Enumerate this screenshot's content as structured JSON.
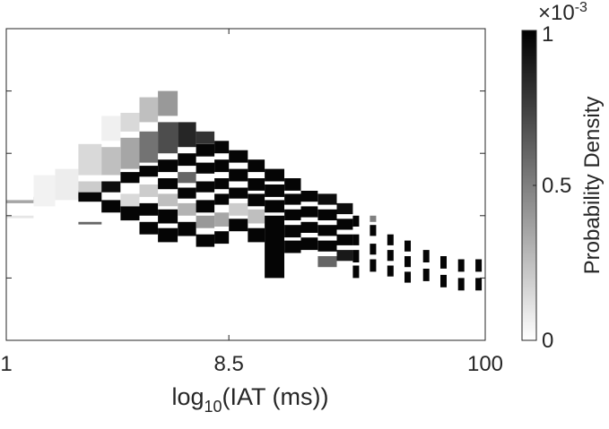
{
  "chart_data": {
    "type": "heatmap",
    "title": "",
    "x_axis": {
      "label_base": "log",
      "label_subscript": "10",
      "label_rest": "(IAT (ms))",
      "scale": "log",
      "range": [
        1,
        100
      ],
      "tick_labels": [
        "1",
        "8.5",
        "100"
      ],
      "tick_values": [
        1,
        8.5,
        100
      ]
    },
    "y_axis": {
      "label": "",
      "tick_labels": []
    },
    "colorbar": {
      "label": "Probability Density",
      "range": [
        0,
        0.001
      ],
      "tick_labels": [
        "0",
        "0.5",
        "1"
      ],
      "tick_values": [
        0,
        0.5,
        1
      ],
      "multiplier_base": "×10",
      "multiplier_exp": "-3",
      "colormap": "gray-reversed"
    },
    "grid": false,
    "columns": [
      {
        "x": 1.0,
        "bands": [
          {
            "y": 0.55,
            "h": 0.01,
            "v": 0.35
          },
          {
            "y": 0.6,
            "h": 0.008,
            "v": 0.1
          }
        ]
      },
      {
        "x": 1.3,
        "bands": [
          {
            "y": 0.54,
            "h": 0.012,
            "v": 0.55
          },
          {
            "y": 0.47,
            "h": 0.1,
            "v": 0.05
          }
        ]
      },
      {
        "x": 1.6,
        "bands": [
          {
            "y": 0.53,
            "h": 0.014,
            "v": 0.75
          },
          {
            "y": 0.45,
            "h": 0.1,
            "v": 0.07
          }
        ]
      },
      {
        "x": 2.0,
        "bands": [
          {
            "y": 0.52,
            "h": 0.035,
            "v": 0.98
          },
          {
            "y": 0.49,
            "h": 0.035,
            "v": 0.2
          },
          {
            "y": 0.37,
            "h": 0.1,
            "v": 0.15
          },
          {
            "y": 0.62,
            "h": 0.008,
            "v": 0.6
          }
        ]
      },
      {
        "x": 2.5,
        "bands": [
          {
            "y": 0.49,
            "h": 0.035,
            "v": 0.95
          },
          {
            "y": 0.55,
            "h": 0.04,
            "v": 0.98
          },
          {
            "y": 0.38,
            "h": 0.09,
            "v": 0.25
          },
          {
            "y": 0.28,
            "h": 0.08,
            "v": 0.06
          }
        ]
      },
      {
        "x": 3.0,
        "bands": [
          {
            "y": 0.46,
            "h": 0.035,
            "v": 0.98
          },
          {
            "y": 0.53,
            "h": 0.04,
            "v": 0.15
          },
          {
            "y": 0.57,
            "h": 0.045,
            "v": 0.98
          },
          {
            "y": 0.35,
            "h": 0.1,
            "v": 0.35
          },
          {
            "y": 0.27,
            "h": 0.06,
            "v": 0.15
          }
        ]
      },
      {
        "x": 3.6,
        "bands": [
          {
            "y": 0.44,
            "h": 0.035,
            "v": 0.98
          },
          {
            "y": 0.5,
            "h": 0.04,
            "v": 0.2
          },
          {
            "y": 0.56,
            "h": 0.04,
            "v": 0.98
          },
          {
            "y": 0.62,
            "h": 0.04,
            "v": 0.98
          },
          {
            "y": 0.33,
            "h": 0.1,
            "v": 0.55
          },
          {
            "y": 0.22,
            "h": 0.08,
            "v": 0.25
          }
        ]
      },
      {
        "x": 4.3,
        "bands": [
          {
            "y": 0.42,
            "h": 0.04,
            "v": 0.98
          },
          {
            "y": 0.48,
            "h": 0.035,
            "v": 0.98
          },
          {
            "y": 0.53,
            "h": 0.04,
            "v": 0.25
          },
          {
            "y": 0.58,
            "h": 0.045,
            "v": 0.98
          },
          {
            "y": 0.64,
            "h": 0.045,
            "v": 0.98
          },
          {
            "y": 0.3,
            "h": 0.1,
            "v": 0.7
          },
          {
            "y": 0.2,
            "h": 0.08,
            "v": 0.4
          }
        ]
      },
      {
        "x": 5.2,
        "bands": [
          {
            "y": 0.4,
            "h": 0.04,
            "v": 0.98
          },
          {
            "y": 0.46,
            "h": 0.035,
            "v": 0.6
          },
          {
            "y": 0.51,
            "h": 0.035,
            "v": 0.98
          },
          {
            "y": 0.56,
            "h": 0.04,
            "v": 0.3
          },
          {
            "y": 0.62,
            "h": 0.045,
            "v": 0.98
          },
          {
            "y": 0.3,
            "h": 0.08,
            "v": 0.85
          }
        ]
      },
      {
        "x": 6.2,
        "bands": [
          {
            "y": 0.37,
            "h": 0.04,
            "v": 0.98
          },
          {
            "y": 0.43,
            "h": 0.035,
            "v": 0.98
          },
          {
            "y": 0.49,
            "h": 0.035,
            "v": 0.98
          },
          {
            "y": 0.55,
            "h": 0.04,
            "v": 0.98
          },
          {
            "y": 0.6,
            "h": 0.04,
            "v": 0.4
          },
          {
            "y": 0.66,
            "h": 0.04,
            "v": 0.98
          },
          {
            "y": 0.33,
            "h": 0.04,
            "v": 0.8
          }
        ]
      },
      {
        "x": 7.4,
        "bands": [
          {
            "y": 0.36,
            "h": 0.04,
            "v": 0.98
          },
          {
            "y": 0.42,
            "h": 0.04,
            "v": 0.98
          },
          {
            "y": 0.48,
            "h": 0.035,
            "v": 0.98
          },
          {
            "y": 0.53,
            "h": 0.035,
            "v": 0.98
          },
          {
            "y": 0.59,
            "h": 0.045,
            "v": 0.35
          },
          {
            "y": 0.65,
            "h": 0.04,
            "v": 0.98
          }
        ]
      },
      {
        "x": 8.5,
        "bands": [
          {
            "y": 0.39,
            "h": 0.04,
            "v": 0.98
          },
          {
            "y": 0.45,
            "h": 0.04,
            "v": 0.98
          },
          {
            "y": 0.51,
            "h": 0.035,
            "v": 0.98
          },
          {
            "y": 0.56,
            "h": 0.04,
            "v": 0.2
          },
          {
            "y": 0.61,
            "h": 0.04,
            "v": 0.98
          }
        ]
      },
      {
        "x": 10.2,
        "bands": [
          {
            "y": 0.42,
            "h": 0.04,
            "v": 0.98
          },
          {
            "y": 0.48,
            "h": 0.04,
            "v": 0.98
          },
          {
            "y": 0.53,
            "h": 0.04,
            "v": 0.98
          },
          {
            "y": 0.58,
            "h": 0.045,
            "v": 0.25
          },
          {
            "y": 0.64,
            "h": 0.045,
            "v": 0.98
          }
        ]
      },
      {
        "x": 12.0,
        "bands": [
          {
            "y": 0.45,
            "h": 0.04,
            "v": 0.98
          },
          {
            "y": 0.5,
            "h": 0.04,
            "v": 0.98
          },
          {
            "y": 0.55,
            "h": 0.04,
            "v": 0.98
          },
          {
            "y": 0.6,
            "h": 0.2,
            "v": 0.98
          }
        ]
      },
      {
        "x": 14.5,
        "bands": [
          {
            "y": 0.48,
            "h": 0.04,
            "v": 0.98
          },
          {
            "y": 0.53,
            "h": 0.035,
            "v": 0.98
          },
          {
            "y": 0.58,
            "h": 0.035,
            "v": 0.98
          },
          {
            "y": 0.63,
            "h": 0.04,
            "v": 0.98
          },
          {
            "y": 0.68,
            "h": 0.04,
            "v": 0.98
          }
        ]
      },
      {
        "x": 17.0,
        "bands": [
          {
            "y": 0.52,
            "h": 0.035,
            "v": 0.98
          },
          {
            "y": 0.57,
            "h": 0.035,
            "v": 0.98
          },
          {
            "y": 0.62,
            "h": 0.035,
            "v": 0.98
          },
          {
            "y": 0.67,
            "h": 0.04,
            "v": 0.98
          }
        ]
      },
      {
        "x": 20.0,
        "bands": [
          {
            "y": 0.53,
            "h": 0.035,
            "v": 0.95
          },
          {
            "y": 0.58,
            "h": 0.035,
            "v": 0.98
          },
          {
            "y": 0.63,
            "h": 0.035,
            "v": 0.98
          },
          {
            "y": 0.68,
            "h": 0.035,
            "v": 0.98
          },
          {
            "y": 0.73,
            "h": 0.035,
            "v": 0.6
          }
        ]
      },
      {
        "x": 24.0,
        "bands": [
          {
            "y": 0.56,
            "h": 0.035,
            "v": 0.95
          },
          {
            "y": 0.61,
            "h": 0.035,
            "v": 0.98
          },
          {
            "y": 0.66,
            "h": 0.035,
            "v": 0.98
          },
          {
            "y": 0.71,
            "h": 0.035,
            "v": 0.9
          }
        ]
      },
      {
        "x": 28.0,
        "bands": [
          {
            "y": 0.6,
            "h": 0.035,
            "v": 0.98
          },
          {
            "y": 0.66,
            "h": 0.035,
            "v": 0.98
          },
          {
            "y": 0.71,
            "h": 0.04,
            "v": 0.98
          },
          {
            "y": 0.76,
            "h": 0.04,
            "v": 0.98
          }
        ]
      },
      {
        "x": 33.0,
        "bands": [
          {
            "y": 0.63,
            "h": 0.035,
            "v": 0.98
          },
          {
            "y": 0.69,
            "h": 0.035,
            "v": 0.98
          },
          {
            "y": 0.74,
            "h": 0.04,
            "v": 0.98
          },
          {
            "y": 0.6,
            "h": 0.02,
            "v": 0.5
          }
        ]
      },
      {
        "x": 39.0,
        "bands": [
          {
            "y": 0.66,
            "h": 0.035,
            "v": 0.98
          },
          {
            "y": 0.71,
            "h": 0.035,
            "v": 0.98
          },
          {
            "y": 0.76,
            "h": 0.035,
            "v": 0.98
          }
        ]
      },
      {
        "x": 46.0,
        "bands": [
          {
            "y": 0.68,
            "h": 0.035,
            "v": 0.98
          },
          {
            "y": 0.73,
            "h": 0.035,
            "v": 0.98
          },
          {
            "y": 0.78,
            "h": 0.035,
            "v": 0.98
          }
        ]
      },
      {
        "x": 55.0,
        "bands": [
          {
            "y": 0.71,
            "h": 0.04,
            "v": 0.98
          },
          {
            "y": 0.77,
            "h": 0.04,
            "v": 0.98
          }
        ]
      },
      {
        "x": 65.0,
        "bands": [
          {
            "y": 0.73,
            "h": 0.04,
            "v": 0.98
          },
          {
            "y": 0.79,
            "h": 0.04,
            "v": 0.98
          }
        ]
      },
      {
        "x": 77.0,
        "bands": [
          {
            "y": 0.74,
            "h": 0.04,
            "v": 0.98
          },
          {
            "y": 0.8,
            "h": 0.04,
            "v": 0.98
          }
        ]
      },
      {
        "x": 91.0,
        "bands": [
          {
            "y": 0.74,
            "h": 0.04,
            "v": 0.98
          },
          {
            "y": 0.8,
            "h": 0.04,
            "v": 0.98
          }
        ]
      }
    ]
  }
}
